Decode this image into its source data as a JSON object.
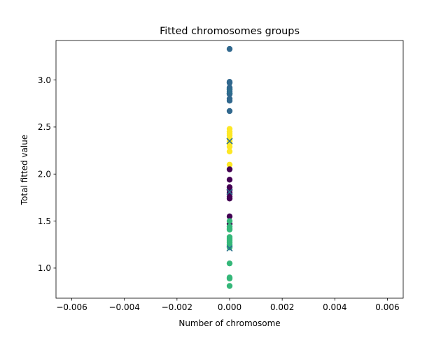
{
  "chart_data": {
    "type": "scatter",
    "title": "Fitted chromosomes groups",
    "xlabel": "Number of chromosome",
    "ylabel": "Total fitted value",
    "xlim": [
      -0.0066,
      0.0066
    ],
    "ylim": [
      0.68,
      3.42
    ],
    "xticks": [
      -0.006,
      -0.004,
      -0.002,
      0.0,
      0.002,
      0.004,
      0.006
    ],
    "xtick_labels": [
      "−0.006",
      "−0.004",
      "−0.002",
      "0.000",
      "0.002",
      "0.004",
      "0.006"
    ],
    "yticks": [
      1.0,
      1.5,
      2.0,
      2.5,
      3.0
    ],
    "ytick_labels": [
      "1.0",
      "1.5",
      "2.0",
      "2.5",
      "3.0"
    ],
    "grid": false,
    "legend": "none",
    "groups": [
      {
        "color": "#31688e",
        "x": [
          0,
          0,
          0,
          0,
          0,
          0,
          0,
          0,
          0,
          0,
          0
        ],
        "y": [
          3.33,
          2.98,
          2.92,
          2.9,
          2.88,
          2.86,
          2.85,
          2.8,
          2.78,
          2.67,
          2.97
        ]
      },
      {
        "color": "#fde725",
        "x": [
          0,
          0,
          0,
          0,
          0,
          0,
          0,
          0,
          0,
          0
        ],
        "y": [
          2.48,
          2.45,
          2.43,
          2.41,
          2.38,
          2.35,
          2.32,
          2.29,
          2.24,
          2.1
        ]
      },
      {
        "color": "#440154",
        "x": [
          0,
          0,
          0,
          0,
          0,
          0,
          0,
          0,
          0
        ],
        "y": [
          2.05,
          1.94,
          1.86,
          1.83,
          1.8,
          1.76,
          1.74,
          1.55,
          1.47
        ]
      },
      {
        "color": "#35b779",
        "x": [
          0,
          0,
          0,
          0,
          0,
          0,
          0,
          0,
          0,
          0,
          0,
          0,
          0,
          0
        ],
        "y": [
          1.5,
          1.44,
          1.42,
          1.41,
          1.33,
          1.31,
          1.29,
          1.27,
          1.25,
          1.22,
          1.05,
          0.9,
          0.89,
          0.81
        ]
      }
    ],
    "centroids": {
      "marker": "x",
      "x": [
        0,
        0,
        0,
        0
      ],
      "y": [
        2.35,
        1.81,
        1.21,
        2.88
      ],
      "colors": [
        "#2c728e",
        "#2c728e",
        "#2c728e",
        "#2c728e"
      ]
    }
  }
}
